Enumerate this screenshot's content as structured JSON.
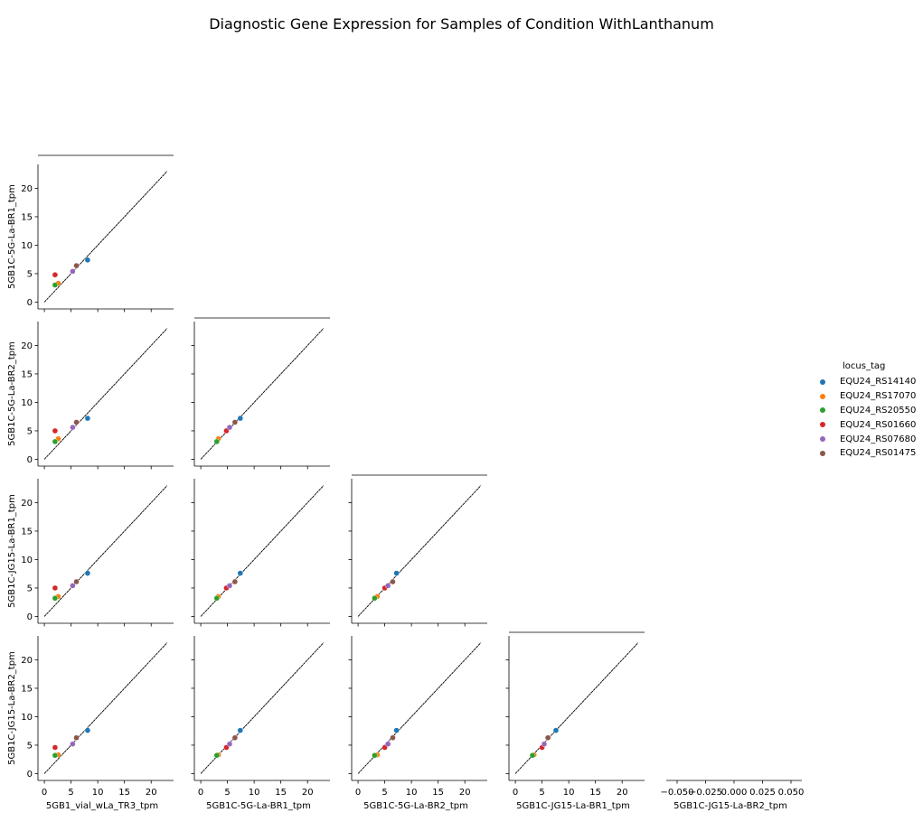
{
  "chart_data": {
    "type": "scatter",
    "title": "Diagnostic Gene Expression for Samples of Condition WithLanthanum",
    "variables": [
      "5GB1_vial_wLa_TR3_tpm",
      "5GB1C-5G-La-BR1_tpm",
      "5GB1C-5G-La-BR2_tpm",
      "5GB1C-JG15-La-BR1_tpm",
      "5GB1C-JG15-La-BR2_tpm"
    ],
    "legend": {
      "title": "locus_tag",
      "placement": "right"
    },
    "series": [
      {
        "name": "EQU24_RS14140",
        "color": "#1f77b4",
        "values": [
          8.1,
          7.4,
          7.2,
          7.6,
          7.6
        ]
      },
      {
        "name": "EQU24_RS17070",
        "color": "#ff7f0e",
        "values": [
          2.6,
          3.3,
          3.6,
          3.5,
          3.3
        ]
      },
      {
        "name": "EQU24_RS20550",
        "color": "#2ca02c",
        "values": [
          2.0,
          3.0,
          3.1,
          3.2,
          3.2
        ]
      },
      {
        "name": "EQU24_RS01660",
        "color": "#d62728",
        "values": [
          2.0,
          4.8,
          5.0,
          5.0,
          4.6
        ]
      },
      {
        "name": "EQU24_RS07680",
        "color": "#9467bd",
        "values": [
          5.3,
          5.4,
          5.6,
          5.4,
          5.2
        ]
      },
      {
        "name": "EQU24_RS01475",
        "color": "#8c564b",
        "values": [
          6.0,
          6.4,
          6.5,
          6.1,
          6.3
        ]
      }
    ],
    "identity_line": {
      "from": 0,
      "to": 23
    },
    "axis_ticks": [
      0,
      5,
      10,
      15,
      20
    ],
    "ylim": [
      -1.2,
      24.2
    ],
    "xlim": [
      -1.2,
      24.2
    ],
    "last_diagonal_xticks": [
      "−0.050",
      "−0.025",
      "0.000",
      "0.025",
      "0.050"
    ],
    "grid": false
  }
}
